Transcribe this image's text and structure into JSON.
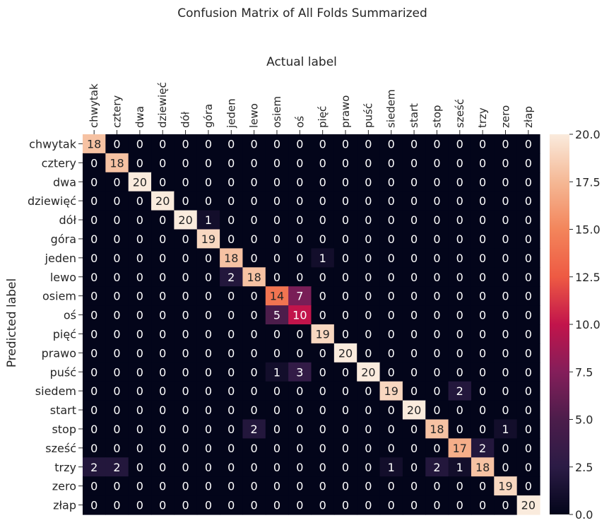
{
  "chart_data": {
    "type": "heatmap",
    "title": "Confusion Matrix of All Folds Summarized",
    "xlabel": "Actual label",
    "ylabel": "Predicted label",
    "x_categories": [
      "chwytak",
      "cztery",
      "dwa",
      "dziewięć",
      "dół",
      "góra",
      "jeden",
      "lewo",
      "osiem",
      "oś",
      "pięć",
      "prawo",
      "puść",
      "siedem",
      "start",
      "stop",
      "sześć",
      "trzy",
      "zero",
      "złap"
    ],
    "y_categories": [
      "chwytak",
      "cztery",
      "dwa",
      "dziewięć",
      "dół",
      "góra",
      "jeden",
      "lewo",
      "osiem",
      "oś",
      "pięć",
      "prawo",
      "puść",
      "siedem",
      "start",
      "stop",
      "sześć",
      "trzy",
      "zero",
      "złap"
    ],
    "values": [
      [
        18,
        0,
        0,
        0,
        0,
        0,
        0,
        0,
        0,
        0,
        0,
        0,
        0,
        0,
        0,
        0,
        0,
        0,
        0,
        0
      ],
      [
        0,
        18,
        0,
        0,
        0,
        0,
        0,
        0,
        0,
        0,
        0,
        0,
        0,
        0,
        0,
        0,
        0,
        0,
        0,
        0
      ],
      [
        0,
        0,
        20,
        0,
        0,
        0,
        0,
        0,
        0,
        0,
        0,
        0,
        0,
        0,
        0,
        0,
        0,
        0,
        0,
        0
      ],
      [
        0,
        0,
        0,
        20,
        0,
        0,
        0,
        0,
        0,
        0,
        0,
        0,
        0,
        0,
        0,
        0,
        0,
        0,
        0,
        0
      ],
      [
        0,
        0,
        0,
        0,
        20,
        1,
        0,
        0,
        0,
        0,
        0,
        0,
        0,
        0,
        0,
        0,
        0,
        0,
        0,
        0
      ],
      [
        0,
        0,
        0,
        0,
        0,
        19,
        0,
        0,
        0,
        0,
        0,
        0,
        0,
        0,
        0,
        0,
        0,
        0,
        0,
        0
      ],
      [
        0,
        0,
        0,
        0,
        0,
        0,
        18,
        0,
        0,
        0,
        1,
        0,
        0,
        0,
        0,
        0,
        0,
        0,
        0,
        0
      ],
      [
        0,
        0,
        0,
        0,
        0,
        0,
        2,
        18,
        0,
        0,
        0,
        0,
        0,
        0,
        0,
        0,
        0,
        0,
        0,
        0
      ],
      [
        0,
        0,
        0,
        0,
        0,
        0,
        0,
        0,
        14,
        7,
        0,
        0,
        0,
        0,
        0,
        0,
        0,
        0,
        0,
        0
      ],
      [
        0,
        0,
        0,
        0,
        0,
        0,
        0,
        0,
        5,
        10,
        0,
        0,
        0,
        0,
        0,
        0,
        0,
        0,
        0,
        0
      ],
      [
        0,
        0,
        0,
        0,
        0,
        0,
        0,
        0,
        0,
        0,
        19,
        0,
        0,
        0,
        0,
        0,
        0,
        0,
        0,
        0
      ],
      [
        0,
        0,
        0,
        0,
        0,
        0,
        0,
        0,
        0,
        0,
        0,
        20,
        0,
        0,
        0,
        0,
        0,
        0,
        0,
        0
      ],
      [
        0,
        0,
        0,
        0,
        0,
        0,
        0,
        0,
        1,
        3,
        0,
        0,
        20,
        0,
        0,
        0,
        0,
        0,
        0,
        0
      ],
      [
        0,
        0,
        0,
        0,
        0,
        0,
        0,
        0,
        0,
        0,
        0,
        0,
        0,
        19,
        0,
        0,
        2,
        0,
        0,
        0
      ],
      [
        0,
        0,
        0,
        0,
        0,
        0,
        0,
        0,
        0,
        0,
        0,
        0,
        0,
        0,
        20,
        0,
        0,
        0,
        0,
        0
      ],
      [
        0,
        0,
        0,
        0,
        0,
        0,
        0,
        2,
        0,
        0,
        0,
        0,
        0,
        0,
        0,
        18,
        0,
        0,
        1,
        0
      ],
      [
        0,
        0,
        0,
        0,
        0,
        0,
        0,
        0,
        0,
        0,
        0,
        0,
        0,
        0,
        0,
        0,
        17,
        2,
        0,
        0
      ],
      [
        2,
        2,
        0,
        0,
        0,
        0,
        0,
        0,
        0,
        0,
        0,
        0,
        0,
        1,
        0,
        2,
        1,
        18,
        0,
        0
      ],
      [
        0,
        0,
        0,
        0,
        0,
        0,
        0,
        0,
        0,
        0,
        0,
        0,
        0,
        0,
        0,
        0,
        0,
        0,
        19,
        0
      ],
      [
        0,
        0,
        0,
        0,
        0,
        0,
        0,
        0,
        0,
        0,
        0,
        0,
        0,
        0,
        0,
        0,
        0,
        0,
        0,
        20
      ]
    ],
    "colorbar": {
      "min": 0,
      "max": 20,
      "ticks": [
        "0.0",
        "2.5",
        "5.0",
        "7.5",
        "10.0",
        "12.5",
        "15.0",
        "17.5",
        "20.0"
      ],
      "colormap": "rocket"
    },
    "xaxis_position": "top",
    "grid": false
  }
}
